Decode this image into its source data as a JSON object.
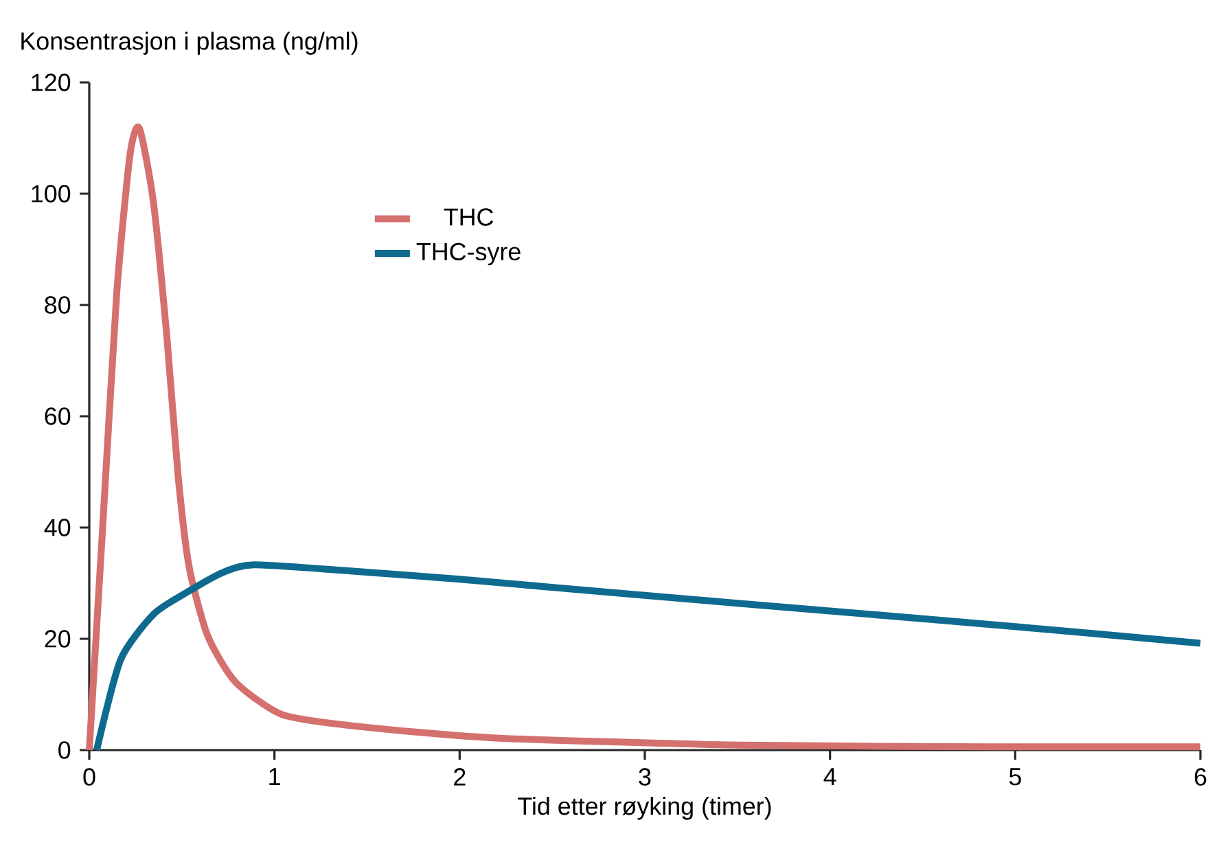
{
  "chart_data": {
    "type": "line",
    "ylabel": "Konsentrasjon i plasma (ng/ml)",
    "xlabel": "Tid etter røyking (timer)",
    "xlim": [
      0,
      6
    ],
    "xticks": [
      0,
      1,
      2,
      3,
      4,
      5,
      6
    ],
    "ylim": [
      0,
      120
    ],
    "yticks": [
      0,
      20,
      40,
      60,
      80,
      100,
      120
    ],
    "grid": false,
    "legend": "top",
    "marker": "none",
    "line_style": "solid",
    "series": [
      {
        "name": "THC",
        "color": "#d4706e",
        "x": [
          0,
          0.074,
          0.148,
          0.22,
          0.27,
          0.346,
          0.42,
          0.48,
          0.54,
          0.64,
          0.79,
          1.04,
          1.41,
          2.18,
          3.51,
          4.87,
          6
        ],
        "values": [
          0,
          41,
          82,
          107,
          111.8,
          98.6,
          73.9,
          49.2,
          32.8,
          20.5,
          12.2,
          6.4,
          4.4,
          2.2,
          0.9,
          0.6,
          0.6
        ]
      },
      {
        "name": "THC-syre",
        "color": "#0f6a8f",
        "x": [
          0.04,
          0.17,
          0.35,
          0.54,
          0.72,
          0.89,
          1.41,
          2,
          3,
          4,
          5,
          6
        ],
        "values": [
          0,
          16.3,
          24.5,
          28.6,
          31.9,
          33.3,
          32.2,
          30.7,
          27.8,
          25.0,
          22.2,
          19.2
        ]
      }
    ]
  }
}
